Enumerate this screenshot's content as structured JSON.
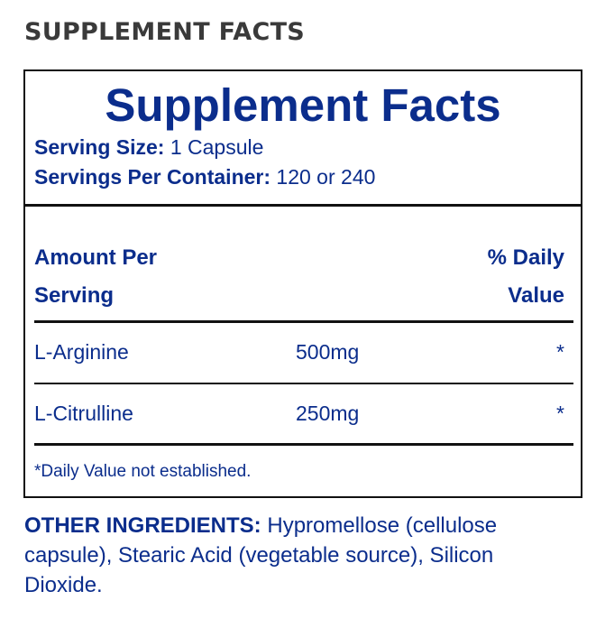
{
  "page_heading": "SUPPLEMENT FACTS",
  "facts": {
    "title": "Supplement Facts",
    "serving_size_label": "Serving Size:",
    "serving_size_value": "1 Capsule",
    "servings_per_container_label": "Servings Per Container:",
    "servings_per_container_value": "120 or 240",
    "col_left_line1": "Amount Per",
    "col_left_line2": "Serving",
    "col_right_line1": "% Daily",
    "col_right_line2": "Value",
    "rows": [
      {
        "name": "L-Arginine",
        "amount": "500mg",
        "dv": "*"
      },
      {
        "name": "L-Citrulline",
        "amount": "250mg",
        "dv": "*"
      }
    ],
    "footnote": "*Daily Value not established."
  },
  "other_ingredients": {
    "label": "OTHER INGREDIENTS:",
    "text": "Hypromellose (cellulose capsule), Stearic Acid (vegetable source), Silicon Dioxide."
  },
  "colors": {
    "navy": "#0b2d8c",
    "heading_gray": "#3a3a3a",
    "rule_black": "#111111"
  }
}
